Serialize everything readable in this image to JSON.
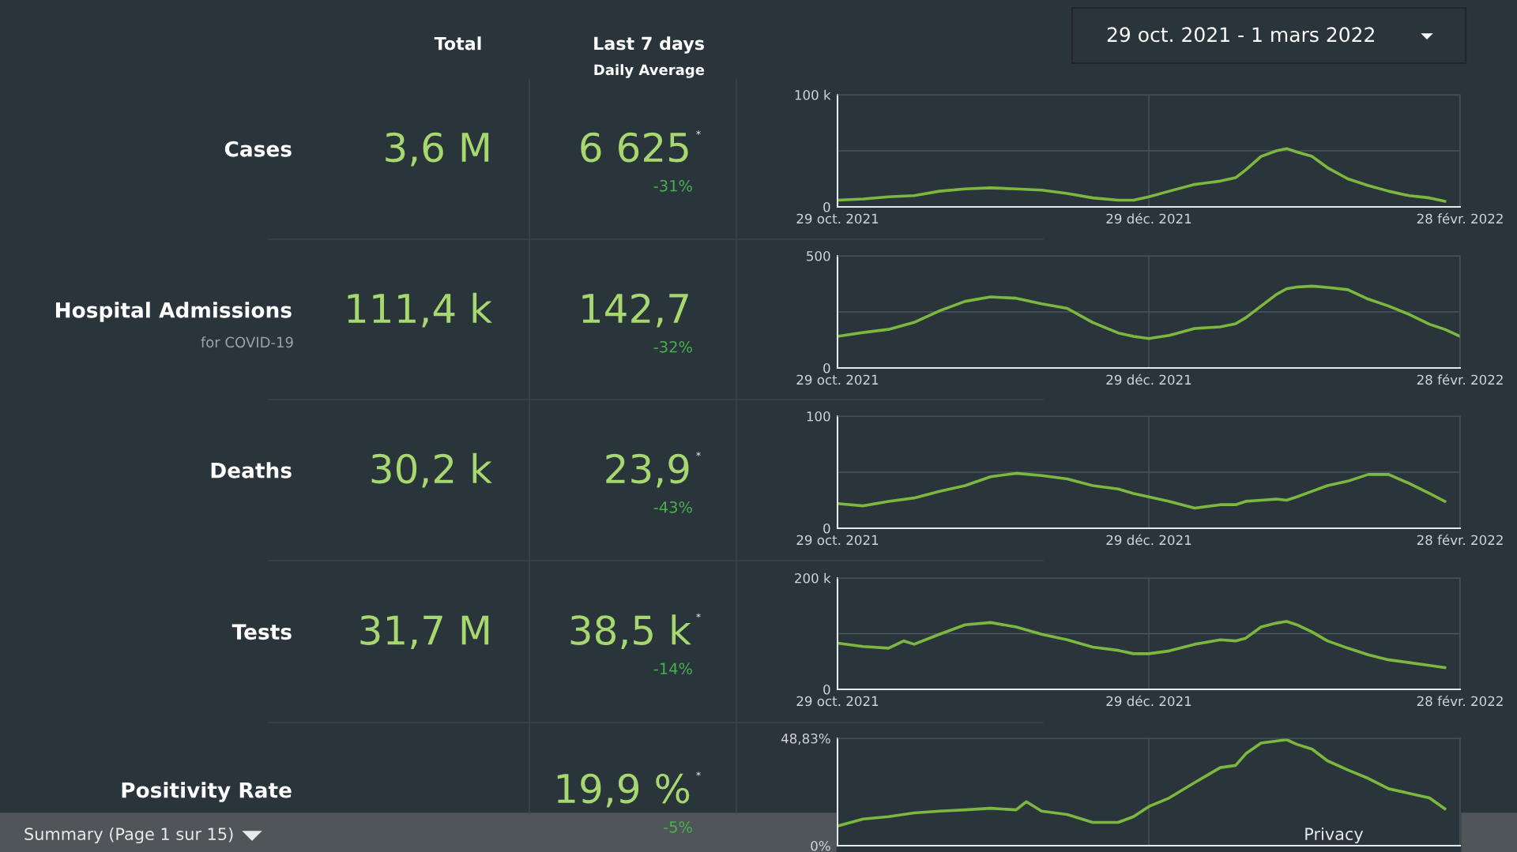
{
  "chart_data": [
    {
      "type": "other",
      "annotations": [
        "Total",
        "Last 7 days",
        "Daily Average",
        "29 oct. 2021 - 1 mars 2022",
        "Summary (Page 1 sur 15)",
        "Privacy"
      ]
    },
    {
      "type": "line",
      "annotations": [
        "Cases",
        null,
        "3,6 M",
        "6 625",
        "-31%",
        "*"
      ],
      "x": [
        "2021-10-29",
        "2021-11-03",
        "2021-11-08",
        "2021-11-13",
        "2021-11-18",
        "2021-11-23",
        "2021-11-28",
        "2021-12-03",
        "2021-12-08",
        "2021-12-13",
        "2021-12-18",
        "2021-12-23",
        "2021-12-26",
        "2021-12-29",
        "2022-01-02",
        "2022-01-07",
        "2022-01-12",
        "2022-01-15",
        "2022-01-17",
        "2022-01-20",
        "2022-01-23",
        "2022-01-25",
        "2022-01-27",
        "2022-01-30",
        "2022-02-02",
        "2022-02-06",
        "2022-02-10",
        "2022-02-14",
        "2022-02-18",
        "2022-02-22",
        "2022-02-25"
      ],
      "series": [
        {
          "color": "#7cb83f",
          "values": [
            6000,
            7000,
            9000,
            10000,
            14000,
            16000,
            17000,
            16000,
            15000,
            12000,
            8000,
            6000,
            6000,
            9000,
            14000,
            20000,
            23000,
            26000,
            33000,
            45000,
            50000,
            52000,
            49000,
            45000,
            35000,
            25000,
            19000,
            14000,
            10000,
            8000,
            5000
          ]
        }
      ],
      "xlim": [
        "2021-10-29",
        "2022-02-28"
      ],
      "xticks": [
        {
          "value": "2021-10-29",
          "label": "29 oct. 2021"
        },
        {
          "value": "2021-12-29",
          "label": "29 déc. 2021"
        },
        {
          "value": "2022-02-28",
          "label": "28 févr. 2022"
        }
      ],
      "ylim": [
        0,
        100000
      ],
      "yticks": [
        0,
        {
          "value": 50000,
          "label": null
        },
        {
          "value": 100000,
          "label": "100 k"
        }
      ],
      "grid": true,
      "marker": "none",
      "line_style": "solid"
    },
    {
      "type": "line",
      "annotations": [
        "Hospital Admissions",
        "for COVID-19",
        "111,4 k",
        "142,7",
        "-32%",
        null
      ],
      "x": [
        "2021-10-29",
        "2021-11-03",
        "2021-11-08",
        "2021-11-13",
        "2021-11-18",
        "2021-11-23",
        "2021-11-28",
        "2021-12-03",
        "2021-12-08",
        "2021-12-13",
        "2021-12-18",
        "2021-12-23",
        "2021-12-26",
        "2021-12-29",
        "2022-01-02",
        "2022-01-07",
        "2022-01-12",
        "2022-01-15",
        "2022-01-17",
        "2022-01-20",
        "2022-01-23",
        "2022-01-25",
        "2022-01-27",
        "2022-01-30",
        "2022-02-02",
        "2022-02-06",
        "2022-02-10",
        "2022-02-14",
        "2022-02-18",
        "2022-02-22",
        "2022-02-25",
        "2022-02-28"
      ],
      "series": [
        {
          "color": "#7cb83f",
          "values": [
            141,
            158,
            172,
            203,
            255,
            297,
            317,
            311,
            286,
            266,
            203,
            156,
            141,
            131,
            145,
            176,
            183,
            197,
            224,
            276,
            328,
            353,
            361,
            365,
            359,
            349,
            307,
            276,
            239,
            195,
            172,
            141
          ]
        }
      ],
      "xlim": [
        "2021-10-29",
        "2022-02-28"
      ],
      "xticks": [
        {
          "value": "2021-10-29",
          "label": "29 oct. 2021"
        },
        {
          "value": "2021-12-29",
          "label": "29 déc. 2021"
        },
        {
          "value": "2022-02-28",
          "label": "28 févr. 2022"
        }
      ],
      "ylim": [
        0,
        500
      ],
      "yticks": [
        0,
        {
          "value": 250,
          "label": null
        },
        500
      ],
      "grid": true,
      "marker": "none",
      "line_style": "solid"
    },
    {
      "type": "line",
      "annotations": [
        "Deaths",
        null,
        "30,2 k",
        "23,9",
        "-43%",
        "*"
      ],
      "x": [
        "2021-10-29",
        "2021-11-03",
        "2021-11-08",
        "2021-11-13",
        "2021-11-18",
        "2021-11-23",
        "2021-11-28",
        "2021-12-03",
        "2021-12-08",
        "2021-12-13",
        "2021-12-18",
        "2021-12-23",
        "2021-12-26",
        "2021-12-29",
        "2022-01-02",
        "2022-01-07",
        "2022-01-12",
        "2022-01-15",
        "2022-01-17",
        "2022-01-20",
        "2022-01-23",
        "2022-01-25",
        "2022-01-27",
        "2022-01-30",
        "2022-02-02",
        "2022-02-06",
        "2022-02-10",
        "2022-02-14",
        "2022-02-18",
        "2022-02-22",
        "2022-02-25"
      ],
      "series": [
        {
          "color": "#7cb83f",
          "values": [
            22,
            20,
            24,
            27,
            33,
            38,
            46,
            49,
            47,
            44,
            38,
            35,
            31,
            28,
            24,
            18,
            21,
            21,
            24,
            25,
            26,
            25,
            28,
            33,
            38,
            42,
            48,
            48,
            40,
            31,
            24
          ]
        }
      ],
      "xlim": [
        "2021-10-29",
        "2022-02-28"
      ],
      "xticks": [
        {
          "value": "2021-10-29",
          "label": "29 oct. 2021"
        },
        {
          "value": "2021-12-29",
          "label": "29 déc. 2021"
        },
        {
          "value": "2022-02-28",
          "label": "28 févr. 2022"
        }
      ],
      "ylim": [
        0,
        100
      ],
      "yticks": [
        0,
        {
          "value": 50,
          "label": null
        },
        100
      ],
      "grid": true,
      "marker": "none",
      "line_style": "solid"
    },
    {
      "type": "line",
      "annotations": [
        "Tests",
        null,
        "31,7 M",
        "38,5 k",
        "-14%",
        "*"
      ],
      "x": [
        "2021-10-29",
        "2021-11-03",
        "2021-11-08",
        "2021-11-11",
        "2021-11-13",
        "2021-11-18",
        "2021-11-23",
        "2021-11-28",
        "2021-12-03",
        "2021-12-08",
        "2021-12-13",
        "2021-12-18",
        "2021-12-23",
        "2021-12-26",
        "2021-12-29",
        "2022-01-02",
        "2022-01-07",
        "2022-01-12",
        "2022-01-15",
        "2022-01-17",
        "2022-01-20",
        "2022-01-23",
        "2022-01-25",
        "2022-01-27",
        "2022-01-30",
        "2022-02-02",
        "2022-02-06",
        "2022-02-10",
        "2022-02-14",
        "2022-02-18",
        "2022-02-22",
        "2022-02-25"
      ],
      "series": [
        {
          "color": "#7cb83f",
          "values": [
            83000,
            77000,
            74000,
            87000,
            81000,
            99000,
            116000,
            120000,
            112000,
            99000,
            89000,
            76000,
            70000,
            64000,
            64000,
            69000,
            81000,
            89000,
            87000,
            92000,
            112000,
            119000,
            122000,
            116000,
            103000,
            87000,
            74000,
            62000,
            53000,
            48000,
            43000,
            39000
          ]
        }
      ],
      "xlim": [
        "2021-10-29",
        "2022-02-28"
      ],
      "xticks": [
        {
          "value": "2021-10-29",
          "label": "29 oct. 2021"
        },
        {
          "value": "2021-12-29",
          "label": "29 déc. 2021"
        },
        {
          "value": "2022-02-28",
          "label": "28 févr. 2022"
        }
      ],
      "ylim": [
        0,
        200000
      ],
      "yticks": [
        0,
        {
          "value": 100000,
          "label": null
        },
        {
          "value": 200000,
          "label": "200 k"
        }
      ],
      "grid": true,
      "marker": "none",
      "line_style": "solid"
    },
    {
      "type": "line",
      "annotations": [
        "Positivity Rate",
        null,
        null,
        "19,9 %",
        "-5%",
        "*"
      ],
      "x": [
        "2021-10-29",
        "2021-11-03",
        "2021-11-08",
        "2021-11-13",
        "2021-11-18",
        "2021-11-23",
        "2021-11-28",
        "2021-12-03",
        "2021-12-05",
        "2021-12-08",
        "2021-12-13",
        "2021-12-18",
        "2021-12-23",
        "2021-12-26",
        "2021-12-29",
        "2022-01-02",
        "2022-01-07",
        "2022-01-12",
        "2022-01-15",
        "2022-01-17",
        "2022-01-20",
        "2022-01-23",
        "2022-01-25",
        "2022-01-27",
        "2022-01-30",
        "2022-02-02",
        "2022-02-06",
        "2022-02-10",
        "2022-02-14",
        "2022-02-18",
        "2022-02-22",
        "2022-02-25"
      ],
      "series": [
        {
          "color": "#7cb83f",
          "values": [
            8.9,
            12.1,
            13.2,
            14.9,
            15.7,
            16.3,
            17.0,
            16.3,
            20.0,
            15.7,
            14.2,
            10.6,
            10.6,
            13.2,
            17.8,
            21.7,
            28.7,
            35.5,
            36.5,
            41.8,
            46.7,
            47.6,
            48.2,
            46.1,
            43.9,
            38.6,
            34.4,
            30.6,
            25.9,
            23.8,
            21.7,
            16.8
          ]
        }
      ],
      "xlim": [
        "2021-10-29",
        "2022-02-28"
      ],
      "xticks": [
        {
          "value": "2021-10-29",
          "label": null
        },
        {
          "value": "2021-12-29",
          "label": null
        },
        {
          "value": "2022-02-28",
          "label": null
        }
      ],
      "ylim": [
        0,
        48.83
      ],
      "yticks": [
        {
          "value": 0,
          "label": "0%"
        },
        {
          "value": 48.83,
          "label": "48,83%"
        }
      ],
      "tick_labels": "y",
      "grid": true,
      "marker": "none",
      "line_style": "solid"
    }
  ]
}
